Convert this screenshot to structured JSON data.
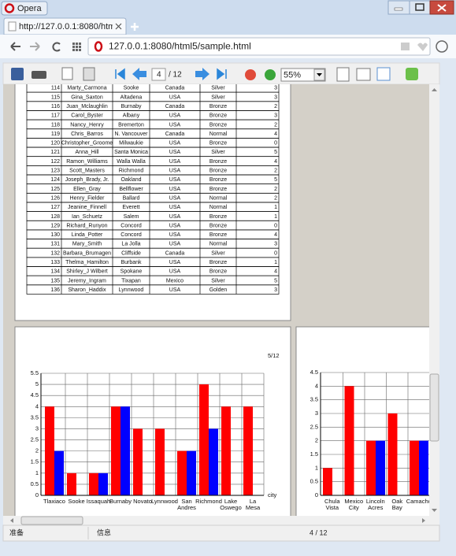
{
  "window": {
    "title": "Opera"
  },
  "tab": {
    "title": "http://127.0.0.1:8080/htm"
  },
  "address": "127.0.0.1:8080/html5/sample.html",
  "toolbar": {
    "page": "4",
    "page_total": "/ 12",
    "zoom": "55%"
  },
  "table": {
    "rows": [
      [
        114,
        "Marty_Carmona",
        "Sooke",
        "Canada",
        "Silver",
        3
      ],
      [
        115,
        "Gina_Saxton",
        "Altadena",
        "USA",
        "Silver",
        3
      ],
      [
        116,
        "Juan_Mclaughlin",
        "Burnaby",
        "Canada",
        "Bronze",
        2
      ],
      [
        117,
        "Carol_Byster",
        "Albany",
        "USA",
        "Bronze",
        3
      ],
      [
        118,
        "Nancy_Henry",
        "Bremerton",
        "USA",
        "Bronze",
        2
      ],
      [
        119,
        "Chris_Barros",
        "N. Vancouver",
        "Canada",
        "Normal",
        4
      ],
      [
        120,
        "Christopher_Groome",
        "Milwaukie",
        "USA",
        "Bronze",
        0
      ],
      [
        121,
        "Anna_Hill",
        "Santa Monica",
        "USA",
        "Silver",
        5
      ],
      [
        122,
        "Ramon_Williams",
        "Walla Walla",
        "USA",
        "Bronze",
        4
      ],
      [
        123,
        "Scott_Masters",
        "Richmond",
        "USA",
        "Bronze",
        2
      ],
      [
        124,
        "Joseph_Brady, Jr.",
        "Oakland",
        "USA",
        "Bronze",
        5
      ],
      [
        125,
        "Ellen_Gray",
        "Bellflower",
        "USA",
        "Bronze",
        2
      ],
      [
        126,
        "Henry_Fielder",
        "Ballard",
        "USA",
        "Normal",
        2
      ],
      [
        127,
        "Jeanine_Finnell",
        "Everett",
        "USA",
        "Normal",
        1
      ],
      [
        128,
        "Ian_Schuetz",
        "Salem",
        "USA",
        "Bronze",
        1
      ],
      [
        129,
        "Richard_Runyon",
        "Concord",
        "USA",
        "Bronze",
        0
      ],
      [
        130,
        "Linda_Potter",
        "Concord",
        "USA",
        "Bronze",
        4
      ],
      [
        131,
        "Mary_Smith",
        "La Jolla",
        "USA",
        "Normal",
        3
      ],
      [
        132,
        "Barbara_Brumagen",
        "Cliffside",
        "Canada",
        "Silver",
        0
      ],
      [
        133,
        "Thelma_Hamilton",
        "Burbank",
        "USA",
        "Bronze",
        1
      ],
      [
        134,
        "Shirley_J Wilbert",
        "Spokane",
        "USA",
        "Bronze",
        4
      ],
      [
        135,
        "Jeremy_Ingram",
        "Tixapan",
        "Mexico",
        "Silver",
        5
      ],
      [
        136,
        "Sharon_Haddix",
        "Lynnwood",
        "USA",
        "Golden",
        3
      ]
    ]
  },
  "chart_data": [
    {
      "type": "bar",
      "page_label": "5/12",
      "x_label": "city",
      "categories": [
        "Tlaxiaco",
        "Sooke",
        "Issaquah",
        "Burnaby",
        "Novato",
        "Lynnwood",
        "San Andres",
        "Richmond",
        "Lake Oswego",
        "La Mesa"
      ],
      "series": [
        {
          "color": "#ff0000",
          "values": [
            4,
            1,
            1,
            4,
            3,
            3,
            2,
            5,
            4,
            4
          ]
        },
        {
          "color": "#0000ff",
          "values": [
            2,
            null,
            1,
            4,
            null,
            null,
            2,
            3,
            null,
            null
          ]
        }
      ],
      "ylim": [
        0,
        5.5
      ],
      "yticks": [
        0,
        0.5,
        1,
        1.5,
        2,
        2.5,
        3,
        3.5,
        4,
        4.5,
        5,
        5.5
      ],
      "grid": true
    },
    {
      "type": "bar",
      "categories": [
        "Chula Vista",
        "Mexico City",
        "Lincoln Acres",
        "Oak Bay",
        "Camacho"
      ],
      "series": [
        {
          "color": "#ff0000",
          "values": [
            1,
            4,
            2,
            3,
            2
          ]
        },
        {
          "color": "#0000ff",
          "values": [
            null,
            null,
            2,
            null,
            2
          ]
        }
      ],
      "ylim": [
        0,
        4.5
      ],
      "yticks": [
        0,
        0.5,
        1,
        1.5,
        2,
        2.5,
        3,
        3.5,
        4,
        4.5
      ],
      "grid": true
    }
  ],
  "status": {
    "left": "准备",
    "middle": "信息",
    "pages": "4 / 12"
  }
}
